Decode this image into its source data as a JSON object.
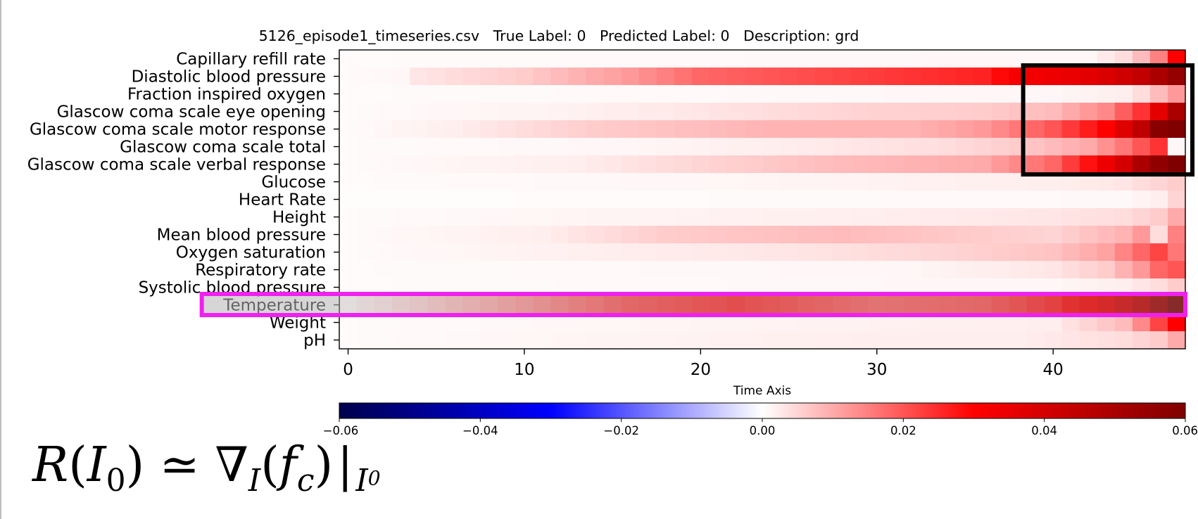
{
  "chart_data": {
    "type": "heatmap",
    "title": "5126_episode1_timeseries.csv   True Label: 0   Predicted Label: 0   Description: grd",
    "xlabel": "Time Axis",
    "ylabel": "",
    "x_ticks": [
      0,
      10,
      20,
      30,
      40
    ],
    "x_range": [
      -0.5,
      47.5
    ],
    "n_time_steps": 48,
    "rows": [
      "Capillary refill rate",
      "Diastolic blood pressure",
      "Fraction inspired oxygen",
      "Glascow coma scale eye opening",
      "Glascow coma scale motor response",
      "Glascow coma scale total",
      "Glascow coma scale verbal response",
      "Glucose",
      "Heart Rate",
      "Height",
      "Mean blood pressure",
      "Oxygen saturation",
      "Respiratory rate",
      "Systolic blood pressure",
      "Temperature",
      "Weight",
      "pH"
    ],
    "row_keyframes": [
      [
        [
          0,
          0.0005
        ],
        [
          42,
          0.001
        ],
        [
          44,
          0.004
        ],
        [
          45,
          0.008
        ],
        [
          46,
          0.015
        ],
        [
          47,
          0.03
        ]
      ],
      [
        [
          0,
          0.0005
        ],
        [
          3,
          0.001
        ],
        [
          4,
          0.003
        ],
        [
          10,
          0.006
        ],
        [
          16,
          0.012
        ],
        [
          20,
          0.018
        ],
        [
          28,
          0.022
        ],
        [
          36,
          0.026
        ],
        [
          38,
          0.032
        ],
        [
          42,
          0.036
        ],
        [
          45,
          0.044
        ],
        [
          46,
          0.05
        ],
        [
          47,
          0.055
        ]
      ],
      [
        [
          0,
          0.0005
        ],
        [
          40,
          0.001
        ],
        [
          44,
          0.002
        ],
        [
          45,
          0.004
        ],
        [
          46,
          0.008
        ],
        [
          47,
          0.012
        ]
      ],
      [
        [
          0,
          0.0005
        ],
        [
          12,
          0.0015
        ],
        [
          20,
          0.003
        ],
        [
          28,
          0.005
        ],
        [
          36,
          0.006
        ],
        [
          40,
          0.008
        ],
        [
          43,
          0.014
        ],
        [
          45,
          0.024
        ],
        [
          46,
          0.036
        ],
        [
          47,
          0.05
        ]
      ],
      [
        [
          0,
          0.0005
        ],
        [
          6,
          0.002
        ],
        [
          14,
          0.006
        ],
        [
          24,
          0.009
        ],
        [
          32,
          0.009
        ],
        [
          36,
          0.012
        ],
        [
          40,
          0.02
        ],
        [
          43,
          0.03
        ],
        [
          45,
          0.045
        ],
        [
          46,
          0.058
        ],
        [
          47,
          0.06
        ]
      ],
      [
        [
          0,
          0.0005
        ],
        [
          16,
          0.001
        ],
        [
          24,
          0.002
        ],
        [
          34,
          0.004
        ],
        [
          38,
          0.006
        ],
        [
          42,
          0.01
        ],
        [
          44,
          0.016
        ],
        [
          46,
          0.024
        ],
        [
          47,
          0.001
        ]
      ],
      [
        [
          0,
          0.0005
        ],
        [
          13,
          0.002
        ],
        [
          20,
          0.005
        ],
        [
          28,
          0.008
        ],
        [
          36,
          0.01
        ],
        [
          40,
          0.018
        ],
        [
          42,
          0.028
        ],
        [
          44,
          0.04
        ],
        [
          45,
          0.05
        ],
        [
          46,
          0.056
        ],
        [
          47,
          0.06
        ]
      ],
      [
        [
          0,
          0.0005
        ],
        [
          20,
          0.001
        ],
        [
          30,
          0.0015
        ],
        [
          40,
          0.002
        ],
        [
          44,
          0.003
        ],
        [
          47,
          0.006
        ]
      ],
      [
        [
          0,
          0.0003
        ],
        [
          44,
          0.0008
        ],
        [
          46,
          0.002
        ],
        [
          47,
          0.005
        ]
      ],
      [
        [
          0,
          0.0005
        ],
        [
          19,
          0.0015
        ],
        [
          30,
          0.002
        ],
        [
          40,
          0.003
        ],
        [
          44,
          0.004
        ],
        [
          46,
          0.006
        ],
        [
          47,
          0.01
        ]
      ],
      [
        [
          0,
          0.0005
        ],
        [
          11,
          0.002
        ],
        [
          18,
          0.006
        ],
        [
          28,
          0.008
        ],
        [
          36,
          0.006
        ],
        [
          40,
          0.005
        ],
        [
          44,
          0.009
        ],
        [
          45,
          0.012
        ],
        [
          46,
          0.004
        ],
        [
          47,
          0.015
        ]
      ],
      [
        [
          0,
          0.0005
        ],
        [
          15,
          0.002
        ],
        [
          25,
          0.003
        ],
        [
          34,
          0.005
        ],
        [
          40,
          0.007
        ],
        [
          43,
          0.011
        ],
        [
          45,
          0.018
        ],
        [
          46,
          0.022
        ],
        [
          47,
          0.016
        ]
      ],
      [
        [
          0,
          0.0005
        ],
        [
          32,
          0.001
        ],
        [
          40,
          0.003
        ],
        [
          43,
          0.006
        ],
        [
          45,
          0.012
        ],
        [
          46,
          0.018
        ],
        [
          47,
          0.02
        ]
      ],
      [
        [
          0,
          0.0005
        ],
        [
          40,
          0.001
        ],
        [
          44,
          0.002
        ],
        [
          46,
          0.004
        ],
        [
          47,
          0.006
        ]
      ],
      [
        [
          0,
          0.001
        ],
        [
          4,
          0.005
        ],
        [
          10,
          0.012
        ],
        [
          16,
          0.02
        ],
        [
          22,
          0.024
        ],
        [
          30,
          0.018
        ],
        [
          36,
          0.02
        ],
        [
          40,
          0.026
        ],
        [
          43,
          0.034
        ],
        [
          45,
          0.044
        ],
        [
          46,
          0.052
        ],
        [
          47,
          0.06
        ]
      ],
      [
        [
          0,
          0.0005
        ],
        [
          40,
          0.002
        ],
        [
          44,
          0.008
        ],
        [
          45,
          0.014
        ],
        [
          46,
          0.022
        ],
        [
          47,
          0.03
        ]
      ],
      [
        [
          0,
          0.0005
        ],
        [
          19,
          0.0015
        ],
        [
          30,
          0.002
        ],
        [
          38,
          0.002
        ],
        [
          44,
          0.004
        ],
        [
          46,
          0.006
        ],
        [
          47,
          0.01
        ]
      ]
    ],
    "colorbar": {
      "colormap": "seismic",
      "range": [
        -0.06,
        0.06
      ],
      "ticks": [
        "−0.06",
        "−0.04",
        "−0.02",
        "0.00",
        "0.02",
        "0.04",
        "0.06"
      ]
    },
    "highlight_boxes": [
      {
        "color": "#000000",
        "time_range": [
          38.3,
          47.9
        ],
        "rows": [
          "Diastolic blood pressure",
          "Glascow coma scale verbal response"
        ]
      },
      {
        "color": "#ee22ee",
        "time_range": [
          -8.3,
          47.5
        ],
        "rows": [
          "Temperature",
          "Temperature"
        ]
      }
    ]
  },
  "formula": {
    "R": "R",
    "open": "(",
    "I": "I",
    "sub0": "0",
    "close_approx": ") ≃ ∇",
    "subI": "I",
    "open2": "(",
    "f": "f",
    "subc": "c",
    "close2": ")",
    "bar": "|",
    "subI0_I": "I",
    "subI0_0": "0"
  }
}
